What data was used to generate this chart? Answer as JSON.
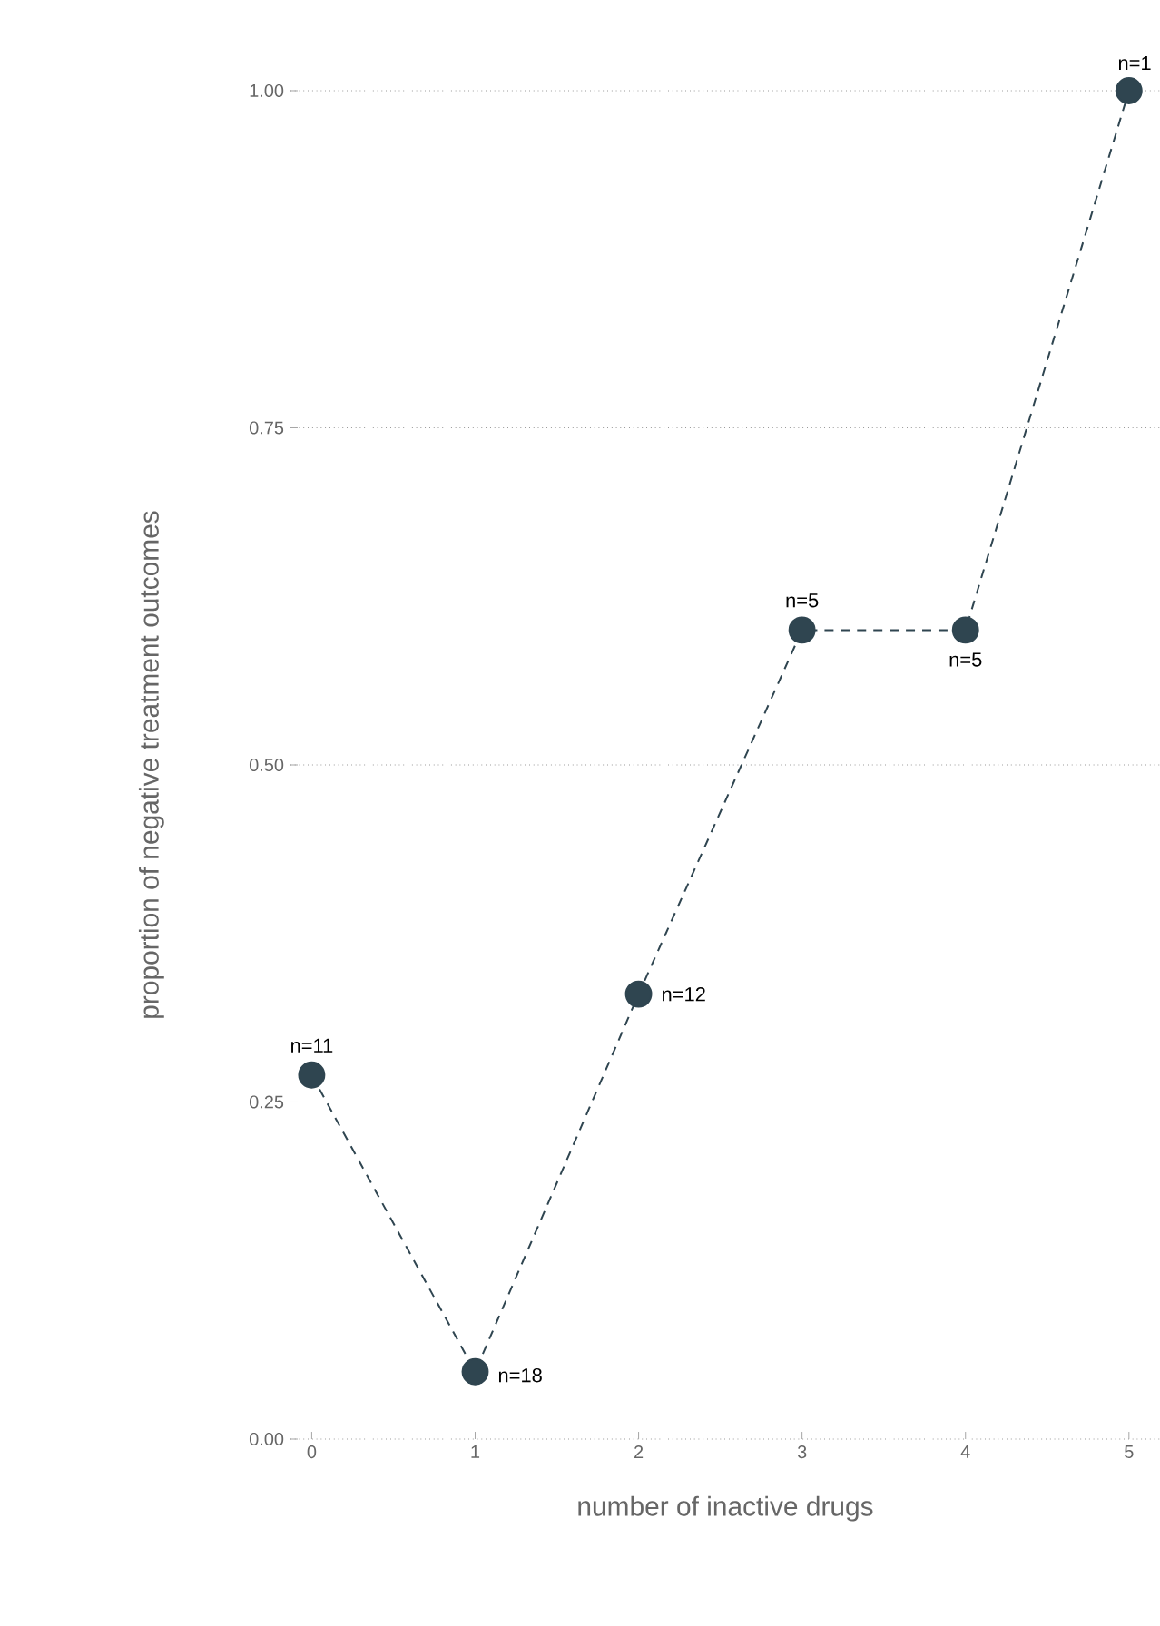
{
  "chart_data": {
    "type": "line",
    "xlabel": "number of inactive drugs",
    "ylabel": "proportion of negative treatment outcomes",
    "x": [
      0,
      1,
      2,
      3,
      4,
      5
    ],
    "series": [
      {
        "color": "#2f4550",
        "values": [
          0.27,
          0.05,
          0.33,
          0.6,
          0.6,
          1.0
        ]
      }
    ],
    "xlim": [
      -0.13,
      5.19
    ],
    "ylim": [
      0,
      1
    ],
    "xticks": [
      0,
      1,
      2,
      3,
      4,
      5
    ],
    "yticks": [
      {
        "value": 0,
        "label": "0.00"
      },
      {
        "value": 0.25,
        "label": "0.25"
      },
      {
        "value": 0.5,
        "label": "0.50"
      },
      {
        "value": 0.75,
        "label": "0.75"
      },
      {
        "value": 1,
        "label": "1.00"
      }
    ],
    "grid": "y",
    "marker": "circle",
    "line_style": "dashed",
    "annotations": [
      {
        "text": "n=11",
        "x": 0,
        "y": 0.27
      },
      {
        "text": "n=18",
        "x": 1,
        "y": 0.05
      },
      {
        "text": "n=12",
        "x": 2,
        "y": 0.33
      },
      {
        "text": "n=5",
        "x": 3,
        "y": 0.6
      },
      {
        "text": "n=5",
        "x": 4,
        "y": 0.6
      },
      {
        "text": "n=1",
        "x": 5,
        "y": 1.0
      }
    ]
  }
}
